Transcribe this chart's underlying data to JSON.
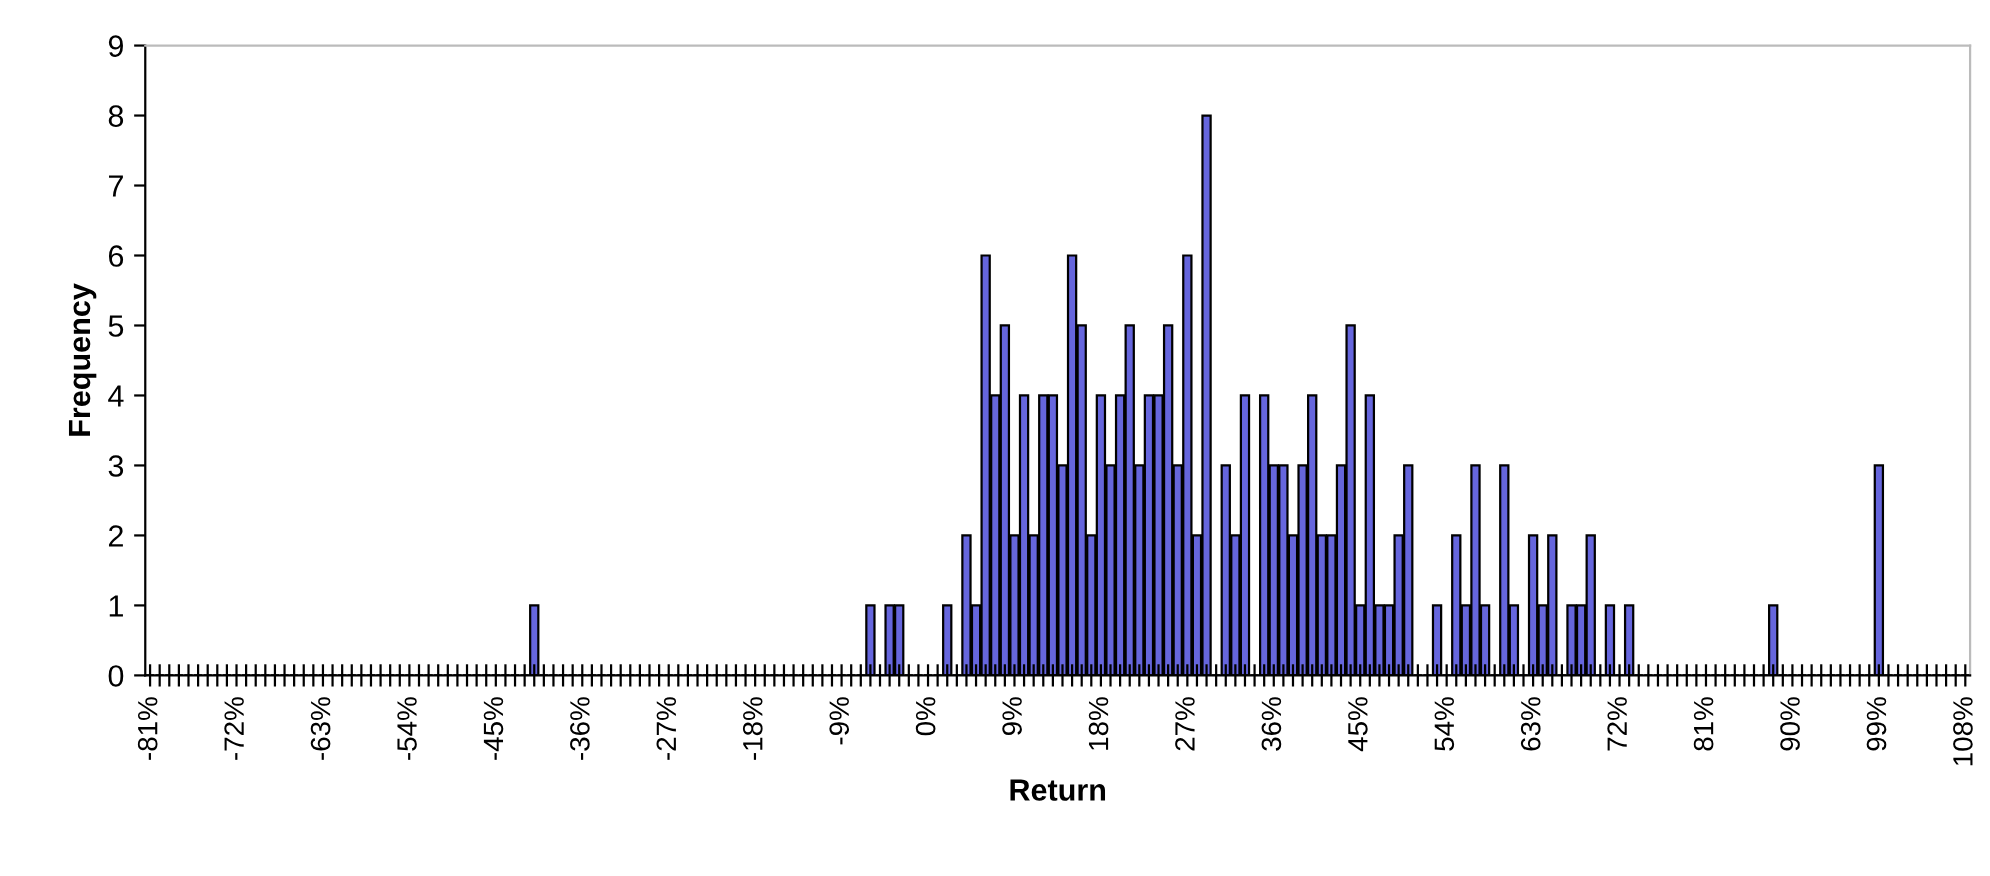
{
  "chart_data": {
    "type": "bar",
    "xlabel": "Return",
    "ylabel": "Frequency",
    "ylim": [
      0,
      9
    ],
    "yticks": [
      0,
      1,
      2,
      3,
      4,
      5,
      6,
      7,
      8,
      9
    ],
    "grid": false,
    "legend": false,
    "categories": [
      "-81%",
      null,
      null,
      null,
      null,
      null,
      null,
      null,
      null,
      "-72%",
      null,
      null,
      null,
      null,
      null,
      null,
      null,
      null,
      "-63%",
      null,
      null,
      null,
      null,
      null,
      null,
      null,
      null,
      "-54%",
      null,
      null,
      null,
      null,
      null,
      null,
      null,
      null,
      "-45%",
      null,
      null,
      null,
      null,
      null,
      null,
      null,
      null,
      "-36%",
      null,
      null,
      null,
      null,
      null,
      null,
      null,
      null,
      "-27%",
      null,
      null,
      null,
      null,
      null,
      null,
      null,
      null,
      "-18%",
      null,
      null,
      null,
      null,
      null,
      null,
      null,
      null,
      "-9%",
      null,
      null,
      null,
      null,
      null,
      null,
      null,
      null,
      "0%",
      null,
      null,
      null,
      null,
      null,
      null,
      null,
      null,
      "9%",
      null,
      null,
      null,
      null,
      null,
      null,
      null,
      null,
      "18%",
      null,
      null,
      null,
      null,
      null,
      null,
      null,
      null,
      "27%",
      null,
      null,
      null,
      null,
      null,
      null,
      null,
      null,
      "36%",
      null,
      null,
      null,
      null,
      null,
      null,
      null,
      null,
      "45%",
      null,
      null,
      null,
      null,
      null,
      null,
      null,
      null,
      "54%",
      null,
      null,
      null,
      null,
      null,
      null,
      null,
      null,
      "63%",
      null,
      null,
      null,
      null,
      null,
      null,
      null,
      null,
      "72%",
      null,
      null,
      null,
      null,
      null,
      null,
      null,
      null,
      "81%",
      null,
      null,
      null,
      null,
      null,
      null,
      null,
      null,
      "90%",
      null,
      null,
      null,
      null,
      null,
      null,
      null,
      null,
      "99%",
      null,
      null,
      null,
      null,
      null,
      null,
      null,
      null,
      "108%"
    ],
    "series": [
      {
        "color": "#6666dd",
        "values": [
          0,
          0,
          0,
          0,
          0,
          0,
          0,
          0,
          0,
          0,
          0,
          0,
          0,
          0,
          0,
          0,
          0,
          0,
          0,
          0,
          0,
          0,
          0,
          0,
          0,
          0,
          0,
          0,
          0,
          0,
          0,
          0,
          0,
          0,
          0,
          0,
          0,
          0,
          0,
          0,
          1,
          0,
          0,
          0,
          0,
          0,
          0,
          0,
          0,
          0,
          0,
          0,
          0,
          0,
          0,
          0,
          0,
          0,
          0,
          0,
          0,
          0,
          0,
          0,
          0,
          0,
          0,
          0,
          0,
          0,
          0,
          0,
          0,
          0,
          0,
          1,
          0,
          1,
          1,
          0,
          0,
          0,
          0,
          1,
          0,
          2,
          1,
          6,
          4,
          5,
          2,
          4,
          2,
          4,
          4,
          3,
          6,
          5,
          2,
          4,
          3,
          4,
          5,
          3,
          4,
          4,
          5,
          3,
          6,
          2,
          8,
          0,
          3,
          2,
          4,
          0,
          4,
          3,
          3,
          2,
          3,
          4,
          2,
          2,
          3,
          5,
          1,
          4,
          1,
          1,
          2,
          3,
          0,
          0,
          1,
          0,
          2,
          1,
          3,
          1,
          0,
          3,
          1,
          0,
          2,
          1,
          2,
          0,
          1,
          1,
          2,
          0,
          1,
          0,
          1,
          0,
          0,
          0,
          0,
          0,
          0,
          0,
          0,
          0,
          0,
          0,
          0,
          0,
          0,
          1,
          0,
          0,
          0,
          0,
          0,
          0,
          0,
          0,
          0,
          0,
          3,
          0,
          0,
          0,
          0,
          0,
          0,
          0,
          0,
          0
        ]
      }
    ]
  }
}
